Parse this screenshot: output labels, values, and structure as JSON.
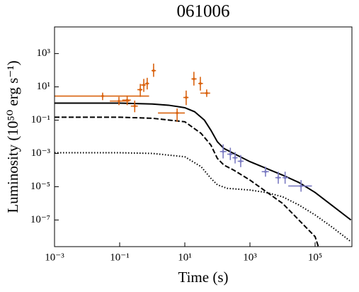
{
  "chart_data": {
    "type": "line",
    "title": "061006",
    "xlabel": "Time (s)",
    "ylabel": "Luminosity (10⁵⁰ erg s⁻¹)",
    "xscale": "log",
    "yscale": "log",
    "xlim": [
      0.001,
      1350000
    ],
    "ylim": [
      2.5e-09,
      40000
    ],
    "xticks": [
      {
        "value": 0.001,
        "label": "10⁻³"
      },
      {
        "value": 0.1,
        "label": "10⁻¹"
      },
      {
        "value": 10,
        "label": "10¹"
      },
      {
        "value": 1000,
        "label": "10³"
      },
      {
        "value": 100000,
        "label": "10⁵"
      }
    ],
    "yticks": [
      {
        "value": 1e-07,
        "label": "10⁻⁷"
      },
      {
        "value": 1e-05,
        "label": "10⁻⁵"
      },
      {
        "value": 0.001,
        "label": "10⁻³"
      },
      {
        "value": 0.1,
        "label": "10⁻¹"
      },
      {
        "value": 10,
        "label": "10¹"
      },
      {
        "value": 1000,
        "label": "10³"
      }
    ],
    "lines": [
      {
        "style": "solid",
        "color": "#000000",
        "x": [
          0.001,
          0.1,
          1,
          3.16,
          10,
          20,
          40,
          63,
          100,
          158,
          316,
          1000,
          3162,
          10000,
          31623,
          100000,
          316228,
          1258925
        ],
        "values": [
          1.05,
          1.05,
          0.93,
          0.79,
          0.56,
          0.32,
          0.1,
          0.025,
          0.005,
          0.002,
          0.001,
          0.00032,
          0.000126,
          5e-05,
          1.8e-05,
          4.5e-06,
          8e-07,
          1e-07
        ]
      },
      {
        "style": "dashed",
        "color": "#000000",
        "x": [
          0.001,
          0.1,
          1,
          10,
          31.6,
          63,
          100,
          158,
          316,
          1000,
          3162,
          10000,
          31623,
          100000,
          125893
        ],
        "values": [
          0.15,
          0.15,
          0.13,
          0.08,
          0.016,
          0.0032,
          0.0005,
          0.0002,
          0.0001,
          2.5e-05,
          5e-06,
          1e-06,
          1e-07,
          1e-08,
          2.5e-09
        ]
      },
      {
        "style": "dotted",
        "color": "#000000",
        "x": [
          0.001,
          0.1,
          1,
          10,
          31.6,
          63,
          100,
          200,
          1000,
          3162,
          10000,
          31623,
          100000,
          316228,
          1258925
        ],
        "values": [
          0.0011,
          0.0011,
          0.001,
          0.00063,
          0.00016,
          3.2e-05,
          1.3e-05,
          8e-06,
          6.3e-06,
          4.5e-06,
          2.5e-06,
          8e-07,
          2e-07,
          4e-08,
          5e-09
        ]
      }
    ],
    "points": [
      {
        "color": "#d9620f",
        "x": [
          0.03,
          0.095,
          0.17,
          0.29,
          0.43,
          0.55,
          0.7,
          1.1,
          5.8,
          11,
          19,
          30,
          47
        ],
        "x_low": [
          0.001,
          0.05,
          0.12,
          0.22,
          0.35,
          0.45,
          0.6,
          0.95,
          1.5,
          9,
          16,
          26,
          30
        ],
        "x_high": [
          0.8,
          0.2,
          0.22,
          0.36,
          0.5,
          0.63,
          0.8,
          1.3,
          10,
          13,
          23,
          36,
          60
        ],
        "values": [
          2.8,
          1.4,
          1.6,
          0.7,
          6.8,
          13,
          16,
          95,
          0.27,
          2.3,
          30,
          16,
          4.2
        ],
        "y_low": [
          1.6,
          0.8,
          0.8,
          0.3,
          2.5,
          5,
          7,
          40,
          0.08,
          0.8,
          12,
          6,
          2.5
        ],
        "y_high": [
          4.5,
          2.5,
          3,
          1.5,
          15,
          30,
          35,
          250,
          0.5,
          6,
          80,
          40,
          7
        ]
      },
      {
        "color": "#7b7bc2",
        "x": [
          150,
          250,
          350,
          520,
          3000,
          7400,
          12000,
          37000
        ],
        "x_low": [
          120,
          200,
          290,
          420,
          2300,
          6000,
          10000,
          15000
        ],
        "x_high": [
          190,
          300,
          420,
          640,
          3800,
          9000,
          15000,
          80000
        ],
        "values": [
          0.0013,
          0.0009,
          0.00055,
          0.00034,
          8e-05,
          3.5e-05,
          3.5e-05,
          1.1e-05
        ],
        "y_low": [
          0.0005,
          0.0004,
          0.00025,
          0.00015,
          4e-05,
          1.5e-05,
          1.5e-05,
          5e-06
        ],
        "y_high": [
          0.0035,
          0.0022,
          0.0012,
          0.0008,
          0.00016,
          8e-05,
          8e-05,
          2.5e-05
        ]
      }
    ]
  }
}
